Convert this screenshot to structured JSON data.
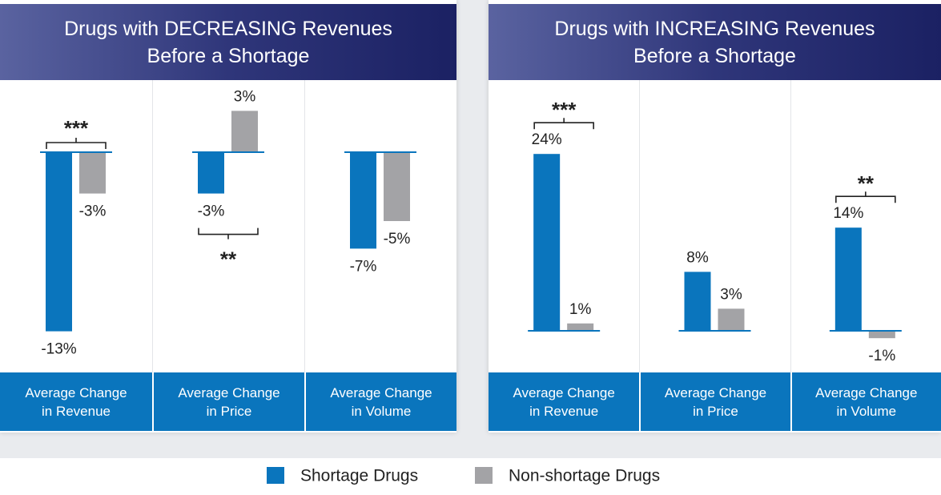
{
  "chart_data": [
    {
      "type": "bar",
      "title": "Drugs with DECREASING Revenues Before a Shortage",
      "categories": [
        "Average Change in Revenue",
        "Average Change in Price",
        "Average Change in Volume"
      ],
      "series": [
        {
          "name": "Shortage Drugs",
          "color": "#0a75bd",
          "values": [
            -13,
            -3,
            -7
          ],
          "value_labels": [
            "-13%",
            "-3%",
            "-7%"
          ]
        },
        {
          "name": "Non-shortage Drugs",
          "color": "#a3a3a6",
          "values": [
            -3,
            3,
            -5
          ],
          "value_labels": [
            "-3%",
            "3%",
            "-5%"
          ]
        }
      ],
      "annotations": [
        "***",
        "**",
        null
      ],
      "ylim": [
        -15,
        5
      ]
    },
    {
      "type": "bar",
      "title": "Drugs with INCREASING Revenues Before a Shortage",
      "categories": [
        "Average Change in Revenue",
        "Average Change in Price",
        "Average Change in Volume"
      ],
      "series": [
        {
          "color": "#0a75bd",
          "values": [
            24,
            8,
            14
          ],
          "value_labels": [
            "24%",
            "8%",
            "14%"
          ]
        },
        {
          "color": "#a3a3a6",
          "values": [
            1,
            3,
            -1
          ],
          "value_labels": [
            "1%",
            "3%",
            "-1%"
          ]
        }
      ],
      "annotations": [
        "***",
        null,
        "**"
      ],
      "ylim": [
        -3,
        27
      ]
    }
  ]
}
